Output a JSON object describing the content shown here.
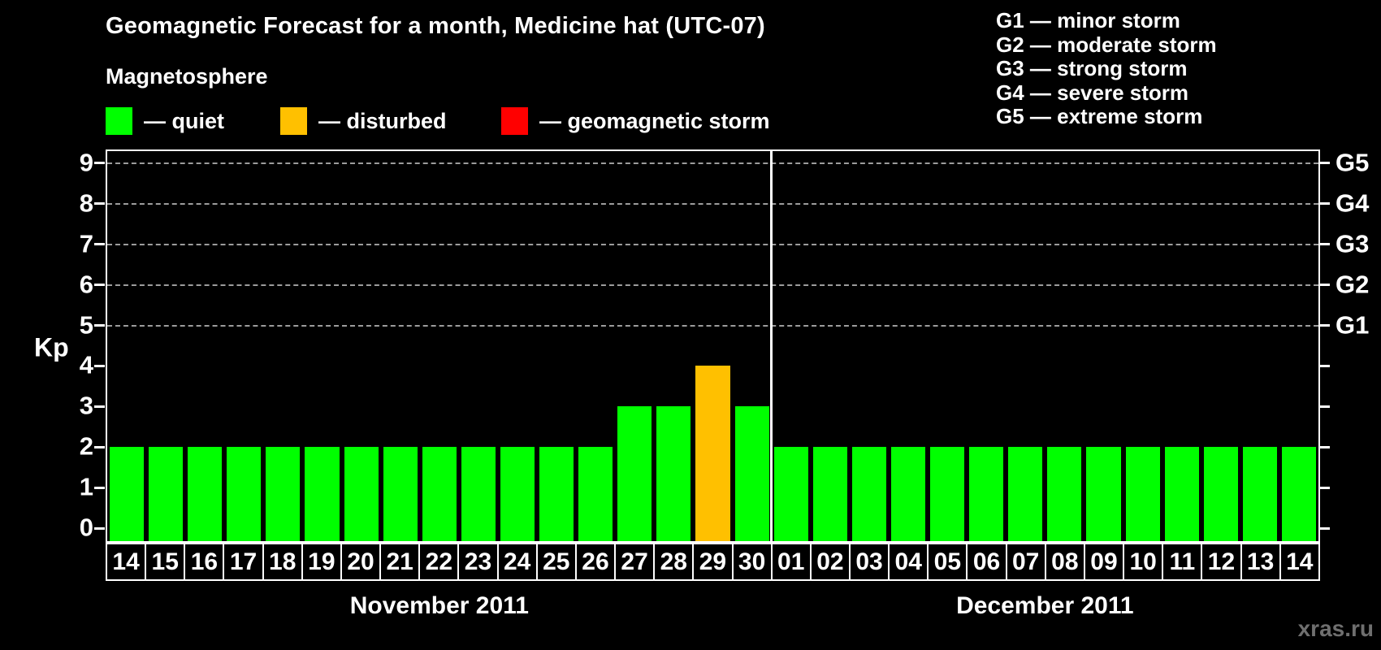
{
  "title": "Geomagnetic Forecast for a month, Medicine hat (UTC-07)",
  "legend": {
    "heading": "Magnetosphere",
    "items": [
      {
        "label": "— quiet",
        "color": "#00ff00",
        "state": "quiet"
      },
      {
        "label": "— disturbed",
        "color": "#ffc000",
        "state": "disturbed"
      },
      {
        "label": "— geomagnetic storm",
        "color": "#ff0000",
        "state": "storm"
      }
    ]
  },
  "g_legend": [
    "G1 — minor storm",
    "G2 — moderate storm",
    "G3 — strong storm",
    "G4 — severe storm",
    "G5 — extreme storm"
  ],
  "chart_data": {
    "type": "bar",
    "title": "Geomagnetic Forecast for a month, Medicine hat (UTC-07)",
    "ylabel": "Kp",
    "ylim": [
      0,
      9
    ],
    "yticks": [
      0,
      1,
      2,
      3,
      4,
      5,
      6,
      7,
      8,
      9
    ],
    "grid_levels": [
      5,
      6,
      7,
      8,
      9
    ],
    "grid": true,
    "legend_position": "top",
    "right_axis": [
      {
        "kp": 5,
        "label": "G1"
      },
      {
        "kp": 6,
        "label": "G2"
      },
      {
        "kp": 7,
        "label": "G3"
      },
      {
        "kp": 8,
        "label": "G4"
      },
      {
        "kp": 9,
        "label": "G5"
      }
    ],
    "colors": {
      "quiet": "#00ff00",
      "disturbed": "#ffc000",
      "storm": "#ff0000"
    },
    "months": [
      {
        "label": "November 2011",
        "days": [
          {
            "day": "14",
            "kp": 2,
            "state": "quiet"
          },
          {
            "day": "15",
            "kp": 2,
            "state": "quiet"
          },
          {
            "day": "16",
            "kp": 2,
            "state": "quiet"
          },
          {
            "day": "17",
            "kp": 2,
            "state": "quiet"
          },
          {
            "day": "18",
            "kp": 2,
            "state": "quiet"
          },
          {
            "day": "19",
            "kp": 2,
            "state": "quiet"
          },
          {
            "day": "20",
            "kp": 2,
            "state": "quiet"
          },
          {
            "day": "21",
            "kp": 2,
            "state": "quiet"
          },
          {
            "day": "22",
            "kp": 2,
            "state": "quiet"
          },
          {
            "day": "23",
            "kp": 2,
            "state": "quiet"
          },
          {
            "day": "24",
            "kp": 2,
            "state": "quiet"
          },
          {
            "day": "25",
            "kp": 2,
            "state": "quiet"
          },
          {
            "day": "26",
            "kp": 2,
            "state": "quiet"
          },
          {
            "day": "27",
            "kp": 3,
            "state": "quiet"
          },
          {
            "day": "28",
            "kp": 3,
            "state": "quiet"
          },
          {
            "day": "29",
            "kp": 4,
            "state": "disturbed"
          },
          {
            "day": "30",
            "kp": 3,
            "state": "quiet"
          }
        ]
      },
      {
        "label": "December 2011",
        "days": [
          {
            "day": "01",
            "kp": 2,
            "state": "quiet"
          },
          {
            "day": "02",
            "kp": 2,
            "state": "quiet"
          },
          {
            "day": "03",
            "kp": 2,
            "state": "quiet"
          },
          {
            "day": "04",
            "kp": 2,
            "state": "quiet"
          },
          {
            "day": "05",
            "kp": 2,
            "state": "quiet"
          },
          {
            "day": "06",
            "kp": 2,
            "state": "quiet"
          },
          {
            "day": "07",
            "kp": 2,
            "state": "quiet"
          },
          {
            "day": "08",
            "kp": 2,
            "state": "quiet"
          },
          {
            "day": "09",
            "kp": 2,
            "state": "quiet"
          },
          {
            "day": "10",
            "kp": 2,
            "state": "quiet"
          },
          {
            "day": "11",
            "kp": 2,
            "state": "quiet"
          },
          {
            "day": "12",
            "kp": 2,
            "state": "quiet"
          },
          {
            "day": "13",
            "kp": 2,
            "state": "quiet"
          },
          {
            "day": "14",
            "kp": 2,
            "state": "quiet"
          }
        ]
      }
    ]
  },
  "watermark": "xras.ru"
}
